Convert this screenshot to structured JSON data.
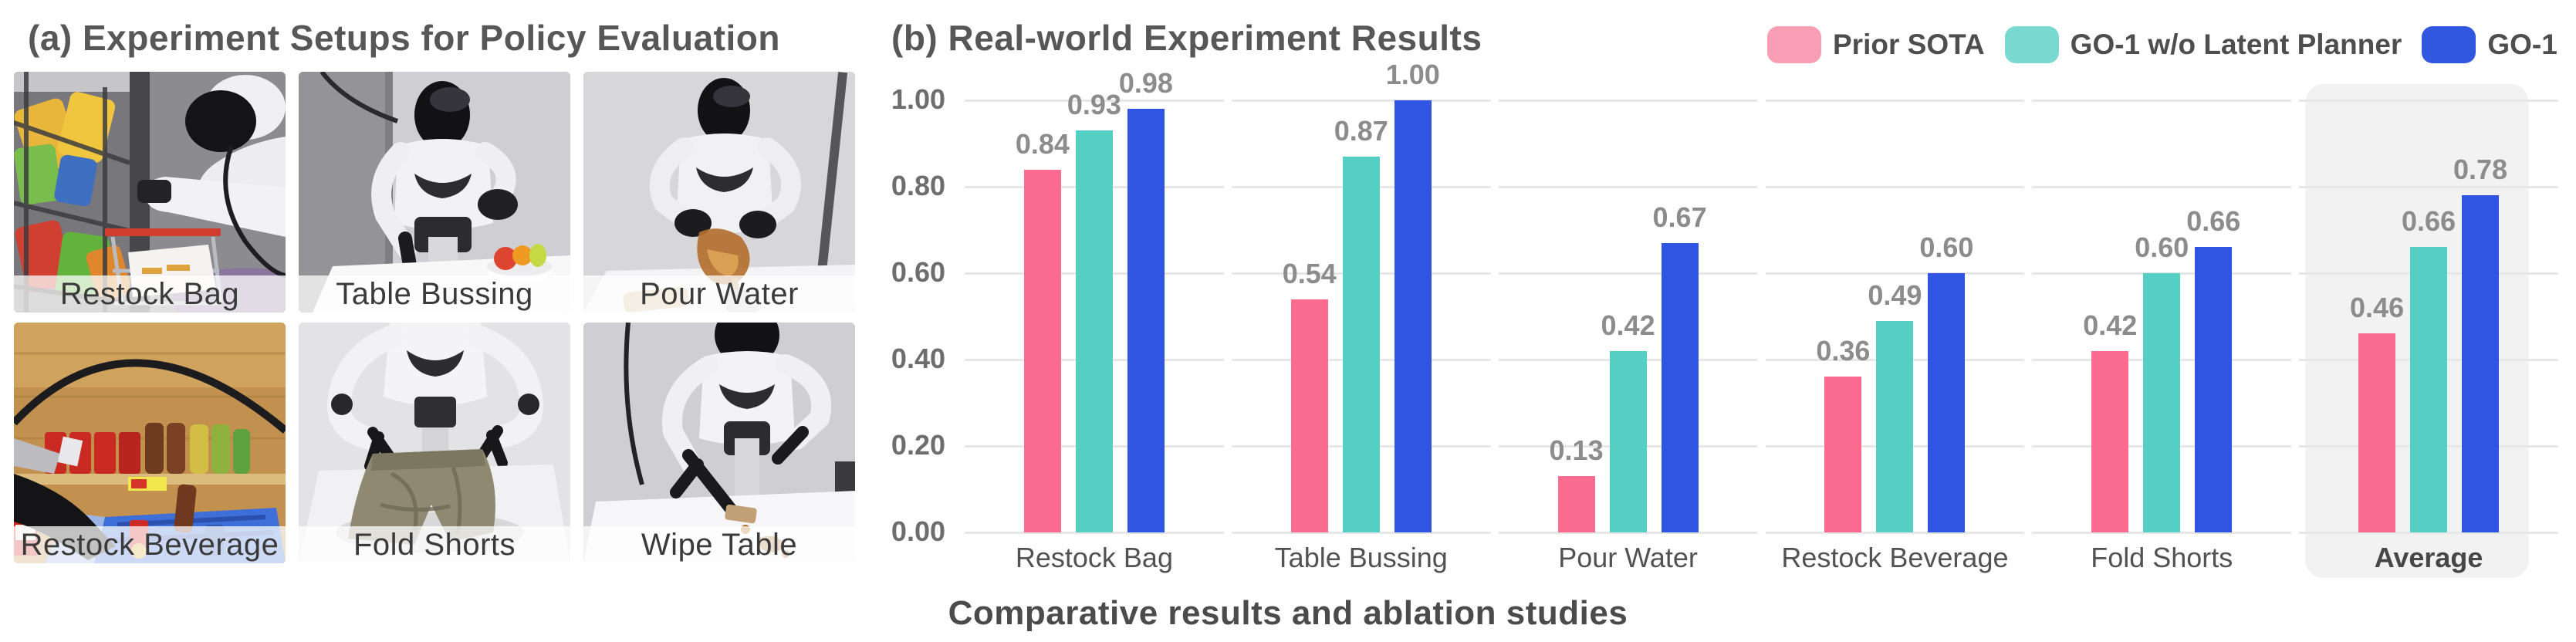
{
  "panel_a": {
    "title": "(a) Experiment Setups for Policy Evaluation",
    "setups": [
      {
        "label": "Restock Bag",
        "scene": "restock-bag"
      },
      {
        "label": "Table Bussing",
        "scene": "table-bussing"
      },
      {
        "label": "Pour Water",
        "scene": "pour-water"
      },
      {
        "label": "Restock Beverage",
        "scene": "restock-beverage"
      },
      {
        "label": "Fold Shorts",
        "scene": "fold-shorts"
      },
      {
        "label": "Wipe Table",
        "scene": "wipe-table"
      }
    ]
  },
  "panel_b": {
    "title": "(b) Real-world Experiment Results",
    "caption": "Comparative results and ablation studies",
    "legend": [
      {
        "label": "Prior SOTA",
        "swatch_color": "#F99FB5"
      },
      {
        "label": "GO-1 w/o Latent Planner",
        "swatch_color": "#79D9D1"
      },
      {
        "label": "GO-1",
        "swatch_color": "#3156DF"
      }
    ]
  },
  "chart_data": {
    "type": "bar",
    "title": "(b) Real-world Experiment Results",
    "categories": [
      "Restock Bag",
      "Table Bussing",
      "Pour Water",
      "Restock Beverage",
      "Fold Shorts",
      "Average"
    ],
    "series": [
      {
        "name": "Prior SOTA",
        "color": "#FB6A8F",
        "values": [
          0.84,
          0.54,
          0.13,
          0.36,
          0.42,
          0.46
        ]
      },
      {
        "name": "GO-1 w/o Latent Planner",
        "color": "#55CFC4",
        "values": [
          0.93,
          0.87,
          0.42,
          0.49,
          0.6,
          0.66
        ]
      },
      {
        "name": "GO-1",
        "color": "#2F55E2",
        "values": [
          0.98,
          1.0,
          0.67,
          0.6,
          0.66,
          0.78
        ]
      }
    ],
    "xlabel": "",
    "ylabel": "",
    "ylim": [
      0,
      1.0
    ],
    "yticks": [
      "0.00",
      "0.20",
      "0.40",
      "0.60",
      "0.80",
      "1.00"
    ],
    "grid": true,
    "legend_position": "top-right",
    "highlight_category": "Average",
    "value_labels": true
  }
}
